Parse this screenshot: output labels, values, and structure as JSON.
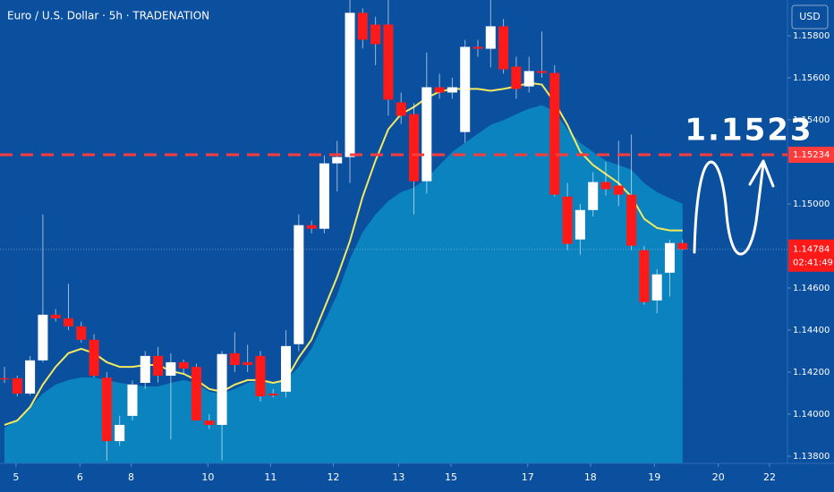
{
  "chart_data": {
    "type": "candlestick",
    "title": "Euro / U.S. Dollar · 5h · TRADENATION",
    "currency": "USD",
    "up_color": "#ffffff",
    "down_color": "#ff1a1a",
    "candles": {
      "open": [
        1.14171,
        1.14171,
        1.14098,
        1.14256,
        1.14473,
        1.14456,
        1.14418,
        1.14354,
        1.14174,
        1.13872,
        1.13992,
        1.14149,
        1.14277,
        1.14183,
        1.14247,
        1.14225,
        1.1397,
        1.13949,
        1.1429,
        1.14247,
        1.14277,
        1.14098,
        1.14107,
        1.14333,
        1.14899,
        1.14882,
        1.15193,
        1.15223,
        1.15909,
        1.15853,
        1.15853,
        1.15483,
        1.15427,
        1.15108,
        1.15555,
        1.1553,
        1.15342,
        1.15747,
        1.15738,
        1.15845,
        1.15653,
        1.15559,
        1.15632,
        1.15623,
        1.15035,
        1.14831,
        1.14971,
        1.15104,
        1.15087,
        1.15044,
        1.1478,
        1.14541,
        1.14673,
        1.14814
      ],
      "high": [
        1.14225,
        1.14183,
        1.14277,
        1.1495,
        1.145,
        1.1462,
        1.1444,
        1.1438,
        1.142,
        1.13992,
        1.1416,
        1.143,
        1.1432,
        1.1429,
        1.1426,
        1.1424,
        1.14,
        1.143,
        1.1439,
        1.1433,
        1.143,
        1.1412,
        1.144,
        1.1495,
        1.1492,
        1.1523,
        1.153,
        1.15973,
        1.1593,
        1.1589,
        1.15973,
        1.1553,
        1.1548,
        1.1572,
        1.1562,
        1.156,
        1.1578,
        1.1578,
        1.15973,
        1.1588,
        1.157,
        1.157,
        1.1582,
        1.1566,
        1.151,
        1.15,
        1.1515,
        1.152,
        1.153,
        1.1533,
        1.148,
        1.1469,
        1.1483,
        1.1483
      ],
      "low": [
        1.14149,
        1.14085,
        1.14089,
        1.14247,
        1.1444,
        1.144,
        1.1434,
        1.14174,
        1.13779,
        1.1385,
        1.1397,
        1.1412,
        1.1415,
        1.1388,
        1.1419,
        1.1397,
        1.1393,
        1.1378,
        1.142,
        1.142,
        1.1406,
        1.1408,
        1.1408,
        1.143,
        1.1486,
        1.1486,
        1.1506,
        1.151,
        1.1574,
        1.1566,
        1.1542,
        1.1538,
        1.1495,
        1.1505,
        1.155,
        1.155,
        1.15291,
        1.157,
        1.1565,
        1.1562,
        1.155,
        1.1553,
        1.156,
        1.15035,
        1.1478,
        1.14758,
        1.1494,
        1.1504,
        1.1499,
        1.1478,
        1.1452,
        1.1448,
        1.1456,
        1.1478
      ],
      "close": [
        1.14165,
        1.14098,
        1.14256,
        1.14473,
        1.14456,
        1.14418,
        1.14354,
        1.14183,
        1.13872,
        1.13949,
        1.14141,
        1.14277,
        1.14183,
        1.14247,
        1.14217,
        1.1397,
        1.13949,
        1.14286,
        1.14234,
        1.14234,
        1.14085,
        1.14089,
        1.14324,
        1.14899,
        1.14882,
        1.15193,
        1.15223,
        1.15909,
        1.15781,
        1.1576,
        1.15496,
        1.15419,
        1.15108,
        1.15555,
        1.1553,
        1.15555,
        1.15747,
        1.15738,
        1.15845,
        1.1564,
        1.15547,
        1.15632,
        1.15623,
        1.15044,
        1.1481,
        1.14971,
        1.15104,
        1.1507,
        1.15044,
        1.14801,
        1.14533,
        1.14665,
        1.14814,
        1.14784
      ]
    },
    "overlays": [
      {
        "kind": "area",
        "color": "#0a8cc4",
        "values": [
          1.13936,
          1.1397,
          1.14034,
          1.14098,
          1.14141,
          1.14162,
          1.14175,
          1.14175,
          1.14162,
          1.14149,
          1.14141,
          1.14132,
          1.14132,
          1.14149,
          1.14162,
          1.14149,
          1.14107,
          1.14098,
          1.1412,
          1.14149,
          1.14162,
          1.14149,
          1.14162,
          1.14225,
          1.14311,
          1.14439,
          1.14567,
          1.14738,
          1.14866,
          1.1495,
          1.15014,
          1.15056,
          1.15078,
          1.15121,
          1.15185,
          1.15248,
          1.15291,
          1.15334,
          1.15376,
          1.15398,
          1.15427,
          1.15453,
          1.1547,
          1.1544,
          1.15355,
          1.15291,
          1.15248,
          1.15206,
          1.15185,
          1.15163,
          1.15099,
          1.15056,
          1.15027,
          1.15001
        ]
      },
      {
        "kind": "line",
        "color": "#f3ea5f",
        "values": [
          1.13949,
          1.1397,
          1.14034,
          1.14141,
          1.14225,
          1.1429,
          1.14311,
          1.1429,
          1.14247,
          1.14225,
          1.14225,
          1.14234,
          1.14234,
          1.14205,
          1.14192,
          1.14162,
          1.1412,
          1.14107,
          1.14141,
          1.14162,
          1.14162,
          1.14149,
          1.14162,
          1.14269,
          1.14354,
          1.14503,
          1.14652,
          1.14823,
          1.15035,
          1.15206,
          1.15355,
          1.15427,
          1.15461,
          1.15504,
          1.15534,
          1.15547,
          1.15547,
          1.15547,
          1.15538,
          1.15547,
          1.15559,
          1.15576,
          1.15568,
          1.15483,
          1.15376,
          1.15248,
          1.15185,
          1.15142,
          1.15099,
          1.15035,
          1.14929,
          1.14886,
          1.14874,
          1.14874
        ]
      }
    ],
    "ylim": [
      1.13766,
      1.1597
    ],
    "yticks": [
      {
        "value": 1.138,
        "label": "1.13800"
      },
      {
        "value": 1.14,
        "label": "1.14000"
      },
      {
        "value": 1.142,
        "label": "1.14200"
      },
      {
        "value": 1.144,
        "label": "1.14400"
      },
      {
        "value": 1.146,
        "label": "1.14600"
      },
      {
        "value": 1.15,
        "label": "1.15000"
      },
      {
        "value": 1.154,
        "label": "1.15400"
      },
      {
        "value": 1.156,
        "label": "1.15600"
      },
      {
        "value": 1.158,
        "label": "1.15800"
      }
    ],
    "xlim": [
      -0.35,
      61.2
    ],
    "xticks": [
      {
        "value": 0.9,
        "label": "5"
      },
      {
        "value": 5.9,
        "label": "6"
      },
      {
        "value": 9.9,
        "label": "8"
      },
      {
        "value": 15.9,
        "label": "10"
      },
      {
        "value": 20.8,
        "label": "11"
      },
      {
        "value": 25.7,
        "label": "12"
      },
      {
        "value": 30.8,
        "label": "13"
      },
      {
        "value": 34.9,
        "label": "15"
      },
      {
        "value": 40.9,
        "label": "17"
      },
      {
        "value": 45.8,
        "label": "18"
      },
      {
        "value": 50.8,
        "label": "19"
      },
      {
        "value": 55.8,
        "label": "20"
      },
      {
        "value": 59.8,
        "label": "22"
      }
    ],
    "price_line": {
      "value": 1.15234,
      "label": "1.15234",
      "color": "#ff3b3b"
    },
    "last_price": {
      "value": 1.14784,
      "label": "1.14784",
      "countdown": "02:41:49"
    },
    "annotation": "1.1523"
  }
}
